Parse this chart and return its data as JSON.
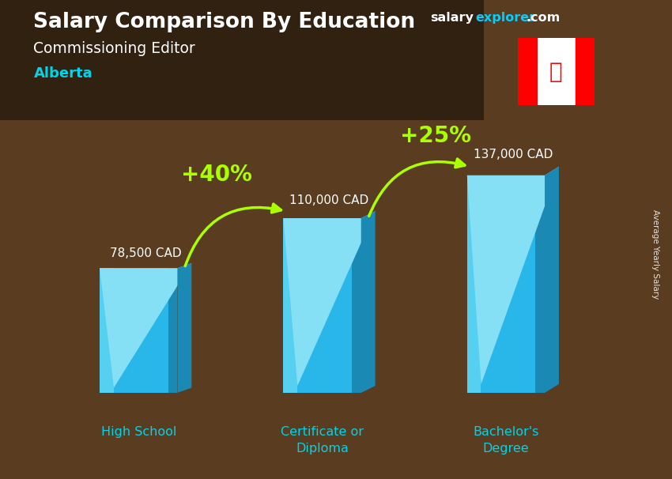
{
  "title_main": "Salary Comparison By Education",
  "title_sub": "Commissioning Editor",
  "title_region": "Alberta",
  "categories": [
    "High School",
    "Certificate or\nDiploma",
    "Bachelor's\nDegree"
  ],
  "values": [
    78500,
    110000,
    137000
  ],
  "value_labels": [
    "78,500 CAD",
    "110,000 CAD",
    "137,000 CAD"
  ],
  "pct_labels": [
    "+40%",
    "+25%"
  ],
  "bar_color_front": "#29b6e8",
  "bar_color_left": "#55d0f0",
  "bar_color_right": "#1a8ab5",
  "bar_color_top": "#85e0f5",
  "bg_color": "#5a3d20",
  "text_color_white": "#ffffff",
  "text_color_cyan": "#00d4e8",
  "text_color_green": "#aaff00",
  "arrow_color": "#aaff00",
  "ylabel_text": "Average Yearly Salary",
  "ylim": [
    0,
    175000
  ],
  "brand_salary_color": "#ffffff",
  "brand_explorer_color": "#00cfff",
  "brand_com_color": "#ffffff"
}
